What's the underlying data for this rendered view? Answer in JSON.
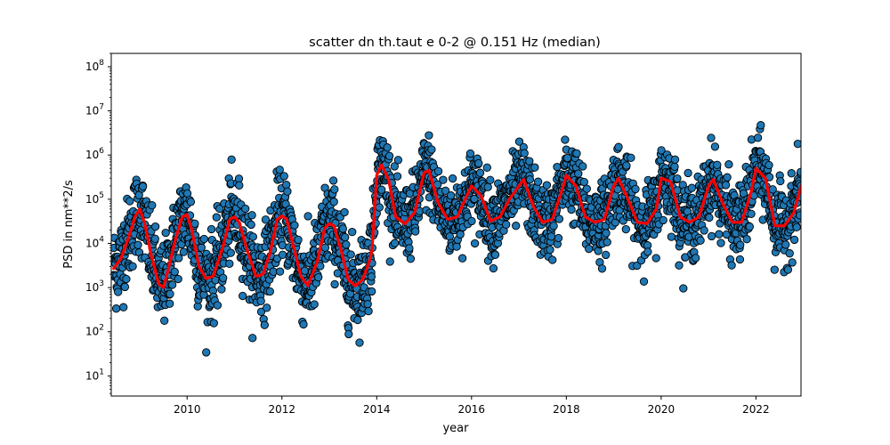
{
  "chart_data": {
    "type": "scatter",
    "title": "scatter dn th.taut e 0-2 @ 0.151 Hz (median)",
    "xlabel": "year",
    "ylabel": "PSD in nm**2/s",
    "xscale": "linear",
    "yscale": "log",
    "xlim": [
      2008.4,
      2022.95
    ],
    "ylim": [
      3.5,
      200000000
    ],
    "grid": false,
    "legend": "none",
    "x_ticks": [
      2010,
      2012,
      2014,
      2016,
      2018,
      2020,
      2022
    ],
    "x_tick_labels": [
      "2010",
      "2012",
      "2014",
      "2016",
      "2018",
      "2020",
      "2022"
    ],
    "y_ticks": [
      10,
      100,
      1000,
      10000,
      100000,
      1000000,
      10000000,
      100000000
    ],
    "y_tick_labels": [
      {
        "base": "10",
        "exp": "1"
      },
      {
        "base": "10",
        "exp": "2"
      },
      {
        "base": "10",
        "exp": "3"
      },
      {
        "base": "10",
        "exp": "4"
      },
      {
        "base": "10",
        "exp": "5"
      },
      {
        "base": "10",
        "exp": "6"
      },
      {
        "base": "10",
        "exp": "7"
      },
      {
        "base": "10",
        "exp": "8"
      }
    ],
    "scatter_color": "#1f77b4",
    "scatter_edge_color": "#000000",
    "median_line_color": "#ff0000",
    "median_curve": {
      "x": [
        2008.45,
        2008.6,
        2008.75,
        2008.9,
        2009.0,
        2009.1,
        2009.25,
        2009.4,
        2009.5,
        2009.6,
        2009.75,
        2009.9,
        2010.0,
        2010.1,
        2010.25,
        2010.4,
        2010.55,
        2010.75,
        2010.9,
        2011.0,
        2011.1,
        2011.25,
        2011.45,
        2011.6,
        2011.75,
        2011.9,
        2012.0,
        2012.1,
        2012.25,
        2012.4,
        2012.55,
        2012.75,
        2012.9,
        2013.0,
        2013.1,
        2013.25,
        2013.4,
        2013.55,
        2013.7,
        2013.85,
        2013.9,
        2014.0,
        2014.1,
        2014.25,
        2014.4,
        2014.6,
        2014.8,
        2015.0,
        2015.1,
        2015.3,
        2015.5,
        2015.7,
        2015.9,
        2016.0,
        2016.2,
        2016.4,
        2016.6,
        2016.8,
        2017.0,
        2017.1,
        2017.3,
        2017.5,
        2017.7,
        2017.9,
        2018.0,
        2018.2,
        2018.4,
        2018.6,
        2018.8,
        2019.0,
        2019.1,
        2019.3,
        2019.5,
        2019.7,
        2019.9,
        2020.0,
        2020.2,
        2020.4,
        2020.6,
        2020.8,
        2021.0,
        2021.1,
        2021.3,
        2021.5,
        2021.7,
        2021.9,
        2022.0,
        2022.2,
        2022.4,
        2022.6,
        2022.8,
        2022.95
      ],
      "y": [
        2700,
        4500,
        12000,
        40000,
        60000,
        30000,
        5000,
        1200,
        1000,
        2500,
        12000,
        40000,
        45000,
        20000,
        3000,
        1600,
        1800,
        8000,
        35000,
        40000,
        30000,
        8000,
        1800,
        2000,
        6000,
        35000,
        42000,
        35000,
        8000,
        1800,
        1100,
        4000,
        22000,
        28000,
        25000,
        7000,
        1500,
        1100,
        1500,
        4000,
        7000,
        350000,
        600000,
        280000,
        40000,
        28000,
        50000,
        400000,
        450000,
        80000,
        35000,
        40000,
        120000,
        200000,
        120000,
        32000,
        40000,
        100000,
        200000,
        280000,
        70000,
        30000,
        35000,
        150000,
        350000,
        200000,
        40000,
        30000,
        35000,
        200000,
        300000,
        100000,
        30000,
        28000,
        60000,
        300000,
        250000,
        40000,
        30000,
        40000,
        200000,
        280000,
        80000,
        30000,
        30000,
        150000,
        500000,
        300000,
        25000,
        25000,
        50000,
        200000
      ]
    }
  }
}
